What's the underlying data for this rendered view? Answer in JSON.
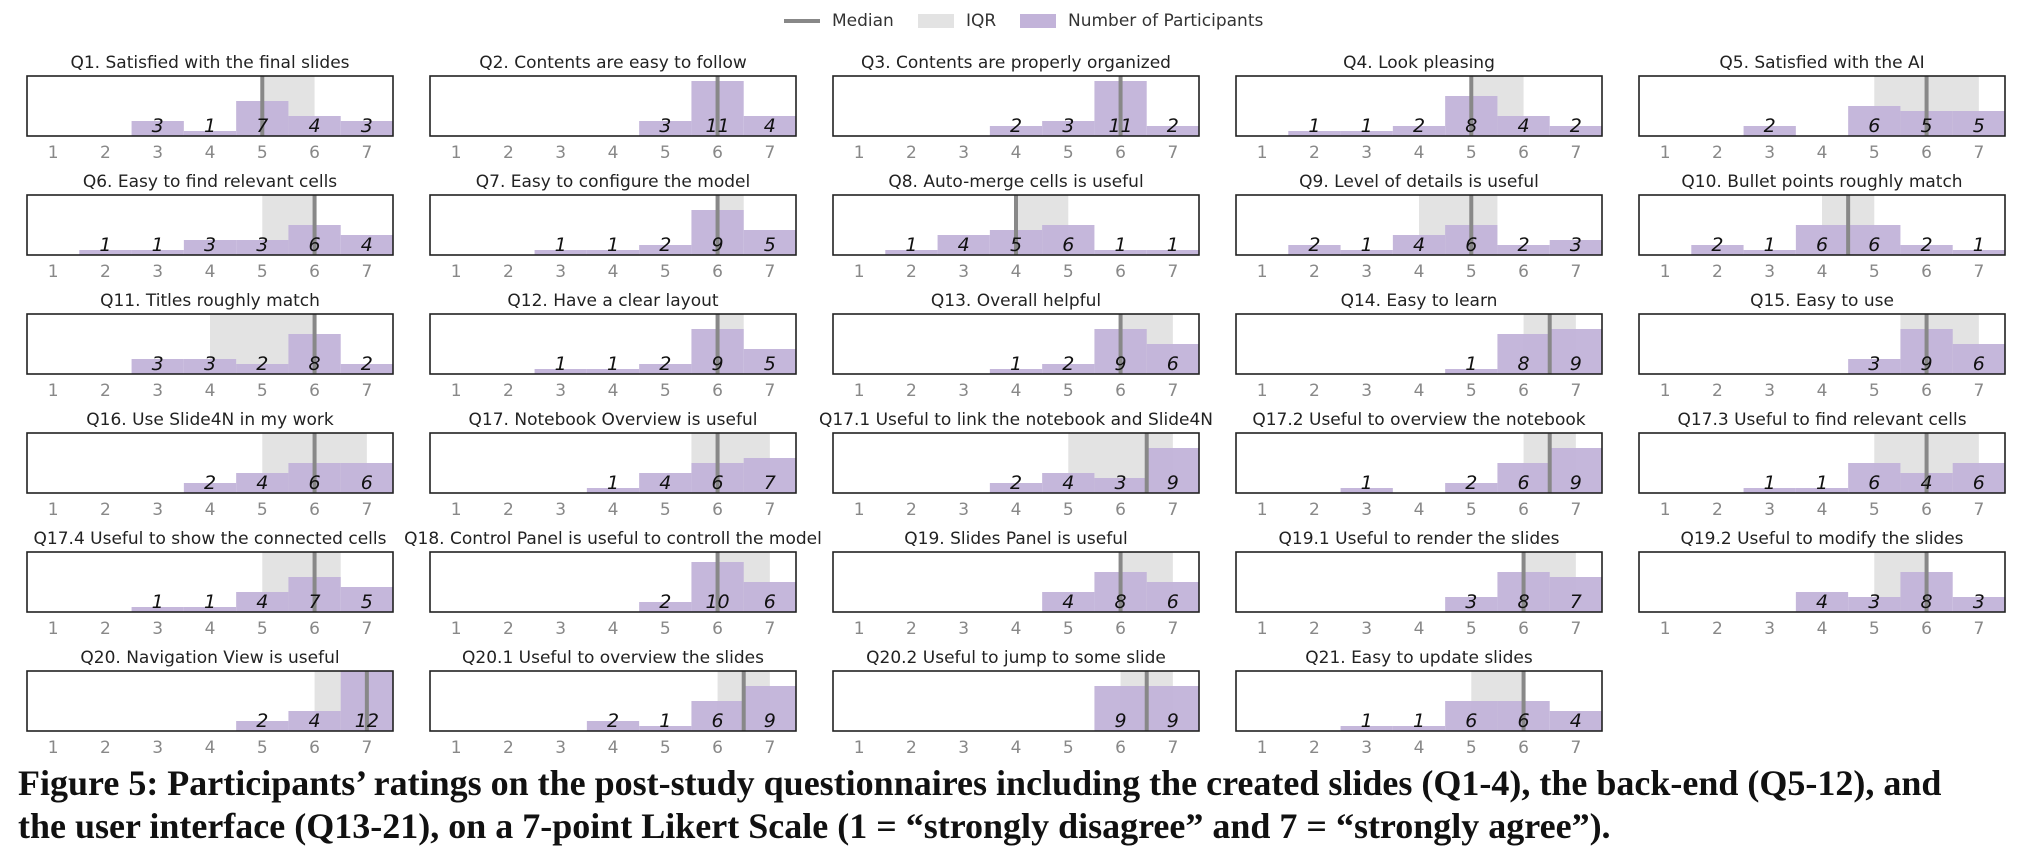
{
  "legend": {
    "median": "Median",
    "iqr": "IQR",
    "participants": "Number of Participants"
  },
  "colors": {
    "bar": "#c2b3d9",
    "iqr": "#e3e3e3",
    "median": "#888888",
    "axis": "#222222",
    "tick": "#888888"
  },
  "caption_lines": [
    "Figure 5: Participants’ ratings on the post-study questionnaires including the created slides (Q1-4), the back-end (Q5-12), and",
    "the user interface (Q13-21), on a 7-point Likert Scale (1 = “strongly disagree” and 7 = “strongly agree”)."
  ],
  "chart_data": [
    {
      "type": "bar",
      "title": "Q1. Satisfied with the final slides",
      "categories": [
        1,
        2,
        3,
        4,
        5,
        6,
        7
      ],
      "values": [
        0,
        0,
        3,
        1,
        7,
        4,
        3
      ],
      "median": 5,
      "iqr": [
        5,
        6
      ],
      "xlim": [
        0.5,
        7.5
      ]
    },
    {
      "type": "bar",
      "title": "Q2. Contents are easy to follow",
      "categories": [
        1,
        2,
        3,
        4,
        5,
        6,
        7
      ],
      "values": [
        0,
        0,
        0,
        0,
        3,
        11,
        4
      ],
      "median": 6,
      "iqr": [
        6,
        6
      ],
      "xlim": [
        0.5,
        7.5
      ]
    },
    {
      "type": "bar",
      "title": "Q3. Contents are properly organized",
      "categories": [
        1,
        2,
        3,
        4,
        5,
        6,
        7
      ],
      "values": [
        0,
        0,
        0,
        2,
        3,
        11,
        2
      ],
      "median": 6,
      "iqr": [
        6,
        6
      ],
      "xlim": [
        0.5,
        7.5
      ]
    },
    {
      "type": "bar",
      "title": "Q4. Look pleasing",
      "categories": [
        1,
        2,
        3,
        4,
        5,
        6,
        7
      ],
      "values": [
        0,
        1,
        1,
        2,
        8,
        4,
        2
      ],
      "median": 5,
      "iqr": [
        5,
        6
      ],
      "xlim": [
        0.5,
        7.5
      ]
    },
    {
      "type": "bar",
      "title": "Q5. Satisfied with the AI",
      "categories": [
        1,
        2,
        3,
        4,
        5,
        6,
        7
      ],
      "values": [
        0,
        0,
        2,
        0,
        6,
        5,
        5
      ],
      "median": 6,
      "iqr": [
        5,
        7
      ],
      "xlim": [
        0.5,
        7.5
      ]
    },
    {
      "type": "bar",
      "title": "Q6. Easy to find relevant cells",
      "categories": [
        1,
        2,
        3,
        4,
        5,
        6,
        7
      ],
      "values": [
        0,
        1,
        1,
        3,
        3,
        6,
        4
      ],
      "median": 6,
      "iqr": [
        5,
        6
      ],
      "xlim": [
        0.5,
        7.5
      ]
    },
    {
      "type": "bar",
      "title": "Q7. Easy to configure the model",
      "categories": [
        1,
        2,
        3,
        4,
        5,
        6,
        7
      ],
      "values": [
        0,
        0,
        1,
        1,
        2,
        9,
        5
      ],
      "median": 6,
      "iqr": [
        6,
        6.5
      ],
      "xlim": [
        0.5,
        7.5
      ]
    },
    {
      "type": "bar",
      "title": "Q8. Auto-merge cells is useful",
      "categories": [
        1,
        2,
        3,
        4,
        5,
        6,
        7
      ],
      "values": [
        0,
        1,
        4,
        5,
        6,
        1,
        1
      ],
      "median": 4,
      "iqr": [
        4,
        5
      ],
      "xlim": [
        0.5,
        7.5
      ]
    },
    {
      "type": "bar",
      "title": "Q9. Level of details is useful",
      "categories": [
        1,
        2,
        3,
        4,
        5,
        6,
        7
      ],
      "values": [
        0,
        2,
        1,
        4,
        6,
        2,
        3
      ],
      "median": 5,
      "iqr": [
        4,
        5.5
      ],
      "xlim": [
        0.5,
        7.5
      ]
    },
    {
      "type": "bar",
      "title": "Q10. Bullet points roughly match",
      "categories": [
        1,
        2,
        3,
        4,
        5,
        6,
        7
      ],
      "values": [
        0,
        2,
        1,
        6,
        6,
        2,
        1
      ],
      "median": 4.5,
      "iqr": [
        4,
        5
      ],
      "xlim": [
        0.5,
        7.5
      ]
    },
    {
      "type": "bar",
      "title": "Q11. Titles roughly match",
      "categories": [
        1,
        2,
        3,
        4,
        5,
        6,
        7
      ],
      "values": [
        0,
        0,
        3,
        3,
        2,
        8,
        2
      ],
      "median": 6,
      "iqr": [
        4,
        6
      ],
      "xlim": [
        0.5,
        7.5
      ]
    },
    {
      "type": "bar",
      "title": "Q12. Have a clear layout",
      "categories": [
        1,
        2,
        3,
        4,
        5,
        6,
        7
      ],
      "values": [
        0,
        0,
        1,
        1,
        2,
        9,
        5
      ],
      "median": 6,
      "iqr": [
        6,
        6.5
      ],
      "xlim": [
        0.5,
        7.5
      ]
    },
    {
      "type": "bar",
      "title": "Q13. Overall helpful",
      "categories": [
        1,
        2,
        3,
        4,
        5,
        6,
        7
      ],
      "values": [
        0,
        0,
        0,
        1,
        2,
        9,
        6
      ],
      "median": 6,
      "iqr": [
        6,
        7
      ],
      "xlim": [
        0.5,
        7.5
      ]
    },
    {
      "type": "bar",
      "title": "Q14. Easy to learn",
      "categories": [
        1,
        2,
        3,
        4,
        5,
        6,
        7
      ],
      "values": [
        0,
        0,
        0,
        0,
        1,
        8,
        9
      ],
      "median": 6.5,
      "iqr": [
        6,
        7
      ],
      "xlim": [
        0.5,
        7.5
      ]
    },
    {
      "type": "bar",
      "title": "Q15. Easy to use",
      "categories": [
        1,
        2,
        3,
        4,
        5,
        6,
        7
      ],
      "values": [
        0,
        0,
        0,
        0,
        3,
        9,
        6
      ],
      "median": 6,
      "iqr": [
        5.5,
        7
      ],
      "xlim": [
        0.5,
        7.5
      ]
    },
    {
      "type": "bar",
      "title": "Q16. Use Slide4N in my work",
      "categories": [
        1,
        2,
        3,
        4,
        5,
        6,
        7
      ],
      "values": [
        0,
        0,
        0,
        2,
        4,
        6,
        6
      ],
      "median": 6,
      "iqr": [
        5,
        7
      ],
      "xlim": [
        0.5,
        7.5
      ]
    },
    {
      "type": "bar",
      "title": "Q17. Notebook Overview is useful",
      "categories": [
        1,
        2,
        3,
        4,
        5,
        6,
        7
      ],
      "values": [
        0,
        0,
        0,
        1,
        4,
        6,
        7
      ],
      "median": 6,
      "iqr": [
        5.5,
        7
      ],
      "xlim": [
        0.5,
        7.5
      ]
    },
    {
      "type": "bar",
      "title": "Q17.1 Useful to link the notebook and Slide4N",
      "categories": [
        1,
        2,
        3,
        4,
        5,
        6,
        7
      ],
      "values": [
        0,
        0,
        0,
        2,
        4,
        3,
        9
      ],
      "median": 6.5,
      "iqr": [
        5,
        7
      ],
      "xlim": [
        0.5,
        7.5
      ]
    },
    {
      "type": "bar",
      "title": "Q17.2 Useful to overview the notebook",
      "categories": [
        1,
        2,
        3,
        4,
        5,
        6,
        7
      ],
      "values": [
        0,
        0,
        1,
        0,
        2,
        6,
        9
      ],
      "median": 6.5,
      "iqr": [
        6,
        7
      ],
      "xlim": [
        0.5,
        7.5
      ]
    },
    {
      "type": "bar",
      "title": "Q17.3 Useful to find relevant cells",
      "categories": [
        1,
        2,
        3,
        4,
        5,
        6,
        7
      ],
      "values": [
        0,
        0,
        1,
        1,
        6,
        4,
        6
      ],
      "median": 6,
      "iqr": [
        5,
        7
      ],
      "xlim": [
        0.5,
        7.5
      ]
    },
    {
      "type": "bar",
      "title": "Q17.4 Useful to show the connected cells",
      "categories": [
        1,
        2,
        3,
        4,
        5,
        6,
        7
      ],
      "values": [
        0,
        0,
        1,
        1,
        4,
        7,
        5
      ],
      "median": 6,
      "iqr": [
        5,
        6.5
      ],
      "xlim": [
        0.5,
        7.5
      ]
    },
    {
      "type": "bar",
      "title": "Q18. Control Panel is useful to controll the model",
      "categories": [
        1,
        2,
        3,
        4,
        5,
        6,
        7
      ],
      "values": [
        0,
        0,
        0,
        0,
        2,
        10,
        6
      ],
      "median": 6,
      "iqr": [
        6,
        7
      ],
      "xlim": [
        0.5,
        7.5
      ]
    },
    {
      "type": "bar",
      "title": "Q19. Slides Panel is useful",
      "categories": [
        1,
        2,
        3,
        4,
        5,
        6,
        7
      ],
      "values": [
        0,
        0,
        0,
        0,
        4,
        8,
        6
      ],
      "median": 6,
      "iqr": [
        6,
        7
      ],
      "xlim": [
        0.5,
        7.5
      ]
    },
    {
      "type": "bar",
      "title": "Q19.1 Useful to render the slides",
      "categories": [
        1,
        2,
        3,
        4,
        5,
        6,
        7
      ],
      "values": [
        0,
        0,
        0,
        0,
        3,
        8,
        7
      ],
      "median": 6,
      "iqr": [
        6,
        7
      ],
      "xlim": [
        0.5,
        7.5
      ]
    },
    {
      "type": "bar",
      "title": "Q19.2 Useful to modify the slides",
      "categories": [
        1,
        2,
        3,
        4,
        5,
        6,
        7
      ],
      "values": [
        0,
        0,
        0,
        4,
        3,
        8,
        3
      ],
      "median": 6,
      "iqr": [
        5,
        6
      ],
      "xlim": [
        0.5,
        7.5
      ]
    },
    {
      "type": "bar",
      "title": "Q20. Navigation View is useful",
      "categories": [
        1,
        2,
        3,
        4,
        5,
        6,
        7
      ],
      "values": [
        0,
        0,
        0,
        0,
        2,
        4,
        12
      ],
      "median": 7,
      "iqr": [
        6,
        7
      ],
      "xlim": [
        0.5,
        7.5
      ]
    },
    {
      "type": "bar",
      "title": "Q20.1 Useful to overview the slides",
      "categories": [
        1,
        2,
        3,
        4,
        5,
        6,
        7
      ],
      "values": [
        0,
        0,
        0,
        2,
        1,
        6,
        9
      ],
      "median": 6.5,
      "iqr": [
        6,
        7
      ],
      "xlim": [
        0.5,
        7.5
      ]
    },
    {
      "type": "bar",
      "title": "Q20.2 Useful to jump to some slide",
      "categories": [
        1,
        2,
        3,
        4,
        5,
        6,
        7
      ],
      "values": [
        0,
        0,
        0,
        0,
        0,
        9,
        9
      ],
      "median": 6.5,
      "iqr": [
        6,
        7
      ],
      "xlim": [
        0.5,
        7.5
      ]
    },
    {
      "type": "bar",
      "title": "Q21. Easy to update slides",
      "categories": [
        1,
        2,
        3,
        4,
        5,
        6,
        7
      ],
      "values": [
        0,
        0,
        1,
        1,
        6,
        6,
        4
      ],
      "median": 6,
      "iqr": [
        5,
        6
      ],
      "xlim": [
        0.5,
        7.5
      ]
    }
  ]
}
